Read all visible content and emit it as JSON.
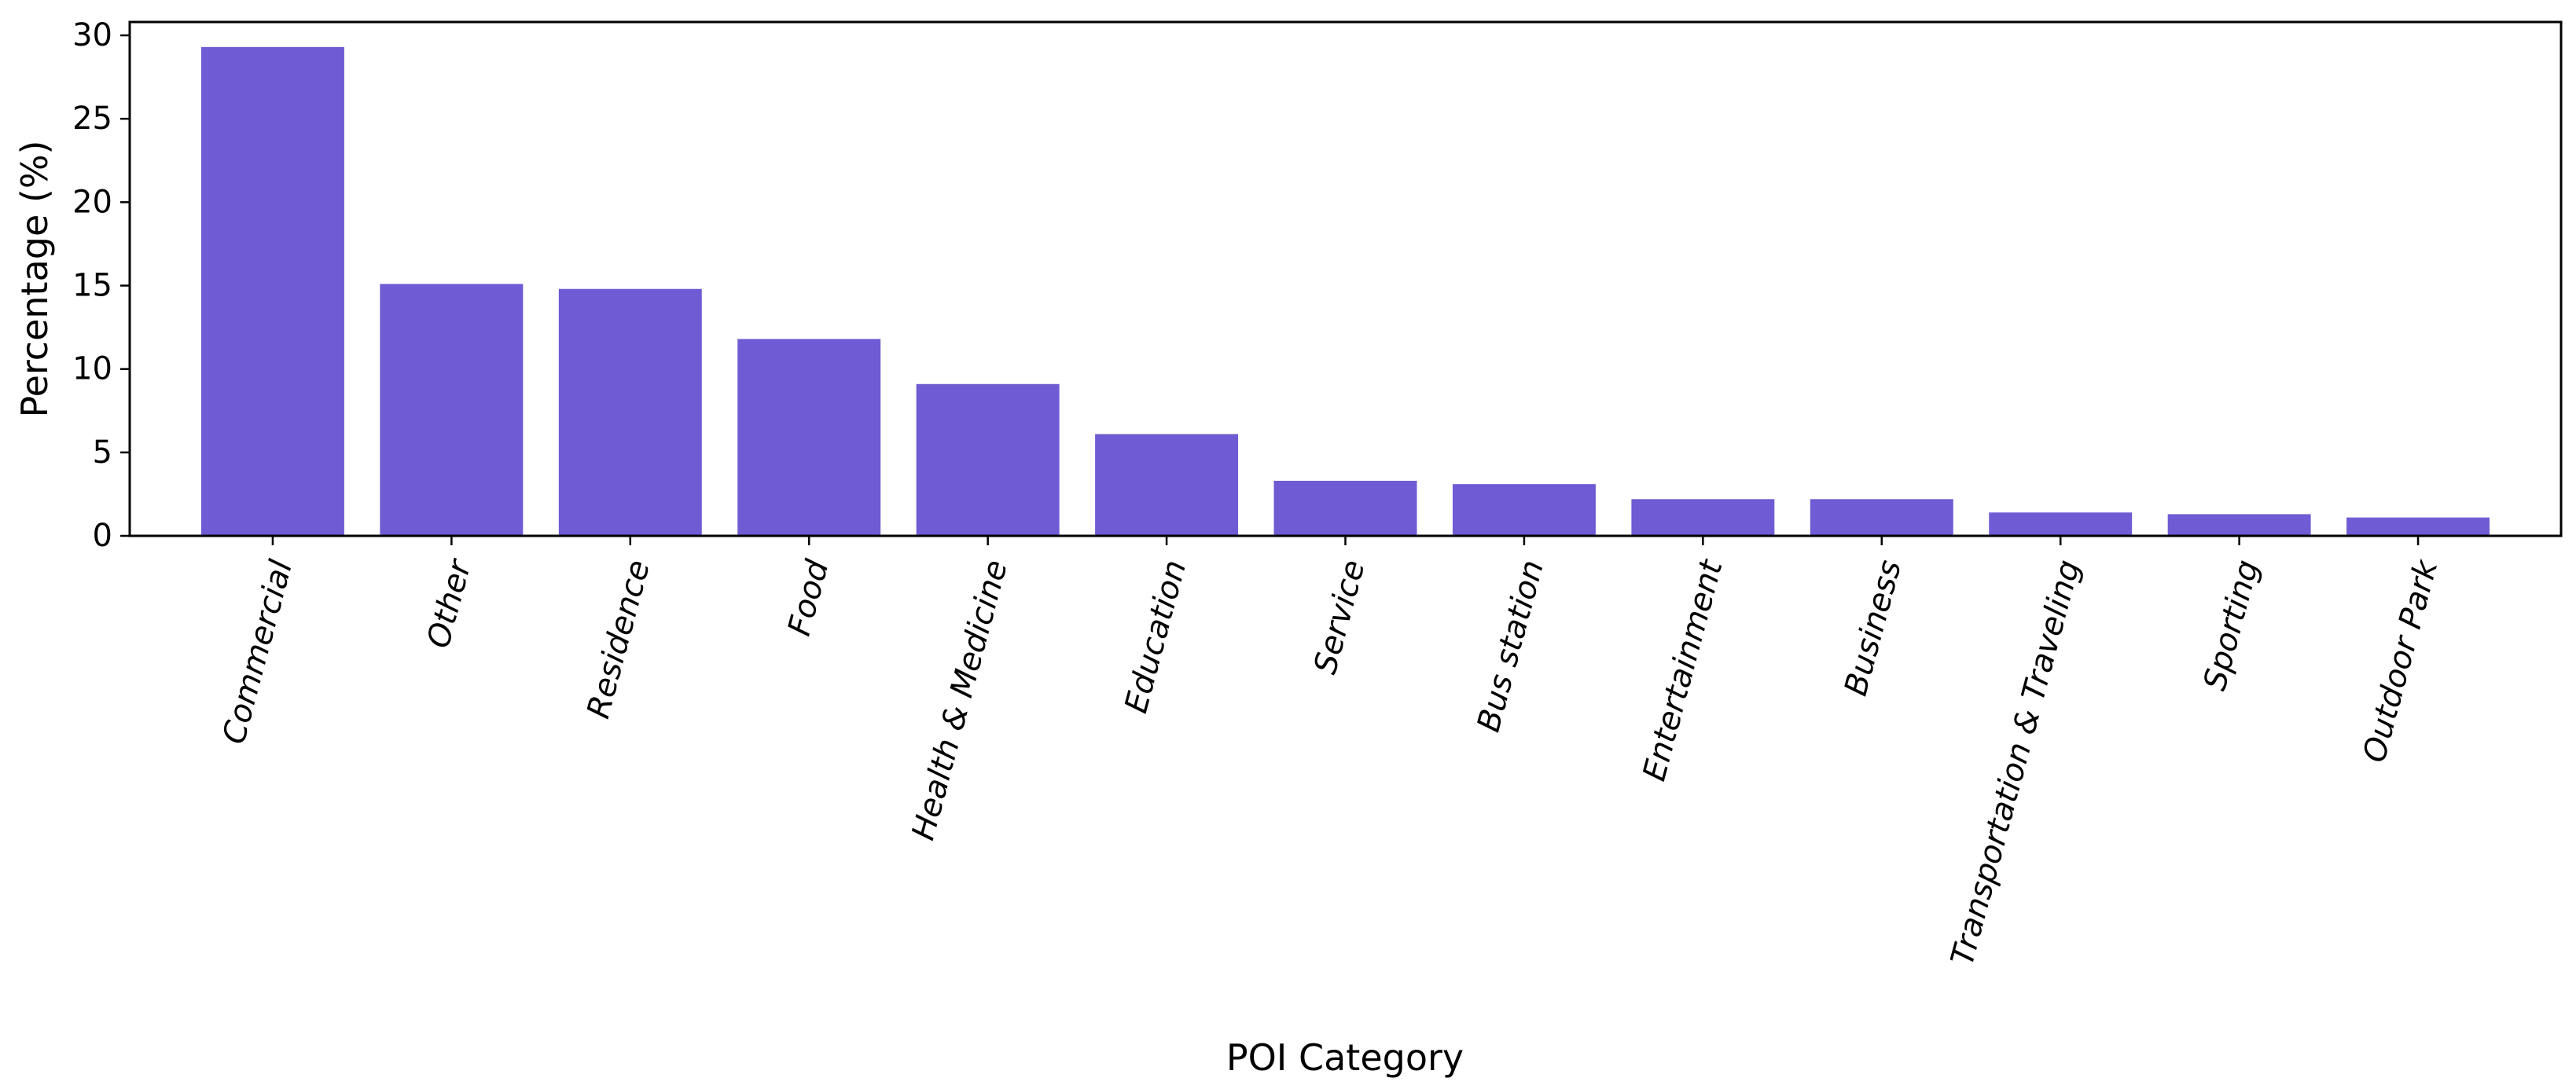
{
  "chart_data": {
    "type": "bar",
    "title": "",
    "xlabel": "POI Category",
    "ylabel": "Percentage (%)",
    "categories": [
      "Commercial",
      "Other",
      "Residence",
      "Food",
      "Health & Medicine",
      "Education",
      "Service",
      "Bus station",
      "Entertainment",
      "Business",
      "Transportation & Traveling",
      "Sporting",
      "Outdoor Park"
    ],
    "values": [
      29.3,
      15.1,
      14.8,
      11.8,
      9.1,
      6.1,
      3.3,
      3.1,
      2.2,
      2.2,
      1.4,
      1.3,
      1.1
    ],
    "ylim": [
      0,
      30.8
    ],
    "yticks": [
      0,
      5,
      10,
      15,
      20,
      25,
      30
    ],
    "bar_color": "#6f5bd3",
    "grid": false,
    "legend": "none"
  }
}
